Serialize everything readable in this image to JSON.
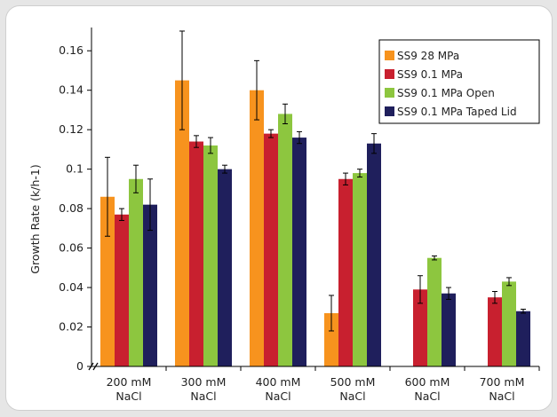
{
  "chart_data": {
    "type": "bar",
    "ylabel": "Growth Rate (k/h-1)",
    "ylim": [
      0,
      0.17
    ],
    "yticks": [
      0,
      0.02,
      0.04,
      0.06,
      0.08,
      0.1,
      0.12,
      0.14,
      0.16
    ],
    "ytick_labels": [
      "0",
      "0.02",
      "0.04",
      "0.06",
      "0.08",
      "0.1",
      "0.12",
      "0.14",
      "0.16"
    ],
    "categories": [
      [
        "200 mM",
        "NaCl"
      ],
      [
        "300 mM",
        "NaCl"
      ],
      [
        "400 mM",
        "NaCl"
      ],
      [
        "500 mM",
        "NaCl"
      ],
      [
        "600 mM",
        "NaCl"
      ],
      [
        "700 mM",
        "NaCl"
      ]
    ],
    "series": [
      {
        "name": "SS9 28 MPa",
        "color": "#f7931e",
        "values": [
          0.086,
          0.145,
          0.14,
          0.027,
          null,
          null
        ],
        "errors": [
          0.02,
          0.025,
          0.015,
          0.009,
          null,
          null
        ]
      },
      {
        "name": "SS9 0.1 MPa",
        "color": "#c8202f",
        "values": [
          0.077,
          0.114,
          0.118,
          0.095,
          0.039,
          0.035
        ],
        "errors": [
          0.003,
          0.003,
          0.002,
          0.003,
          0.007,
          0.003
        ]
      },
      {
        "name": "SS9 0.1 MPa Open",
        "color": "#8dc63f",
        "values": [
          0.095,
          0.112,
          0.128,
          0.098,
          0.055,
          0.043
        ],
        "errors": [
          0.007,
          0.004,
          0.005,
          0.002,
          0.001,
          0.002
        ]
      },
      {
        "name": "SS9 0.1 MPa Taped Lid",
        "color": "#1f1f5c",
        "values": [
          0.082,
          0.1,
          0.116,
          0.113,
          0.037,
          0.028
        ],
        "errors": [
          0.013,
          0.002,
          0.003,
          0.005,
          0.003,
          0.001
        ]
      }
    ],
    "legend_position": "top-right",
    "grid": false
  }
}
